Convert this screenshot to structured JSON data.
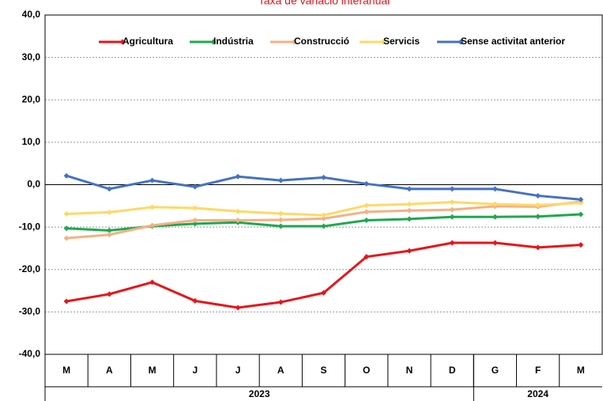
{
  "chart_data": {
    "type": "line",
    "title": "Taxa de variació interanual",
    "categories": [
      "M",
      "A",
      "M",
      "J",
      "J",
      "A",
      "S",
      "O",
      "N",
      "D",
      "G",
      "F",
      "M"
    ],
    "x_groups": [
      {
        "label": "2023",
        "span": 10
      },
      {
        "label": "2024",
        "span": 3
      }
    ],
    "series": [
      {
        "name": "Agricultura",
        "color": "#e8141b",
        "values": [
          -27.5,
          -25.8,
          -23,
          -27.4,
          -29,
          -27.7,
          -25.5,
          -17,
          -15.6,
          -13.7,
          -13.7,
          -14.8,
          -14.2
        ]
      },
      {
        "name": "Indústria",
        "color": "#1fa84f",
        "values": [
          -10.3,
          -10.8,
          -9.8,
          -9.2,
          -8.9,
          -9.8,
          -9.8,
          -8.4,
          -8.1,
          -7.6,
          -7.6,
          -7.5,
          -7.0
        ]
      },
      {
        "name": "Construcció",
        "color": "#f4b183",
        "values": [
          -12.6,
          -11.8,
          -9.6,
          -8.4,
          -8.4,
          -8.3,
          -8.0,
          -6.4,
          -6.1,
          -5.9,
          -5.1,
          -5.2,
          -4.0
        ]
      },
      {
        "name": "Servicis",
        "color": "#ffd966",
        "values": [
          -6.9,
          -6.5,
          -5.3,
          -5.5,
          -6.3,
          -6.8,
          -7.2,
          -4.9,
          -4.6,
          -4.1,
          -4.6,
          -4.8,
          -4.3
        ]
      },
      {
        "name": "Sense activitat anterior",
        "color": "#4472c4",
        "values": [
          2.1,
          -1.0,
          1.0,
          -0.5,
          1.9,
          1.0,
          1.7,
          0.2,
          -1.0,
          -1.0,
          -1.0,
          -2.6,
          -3.5
        ]
      }
    ],
    "ylim": [
      -40,
      40
    ],
    "yticks": [
      {
        "value": -40,
        "label": "-40,0"
      },
      {
        "value": -30,
        "label": "-30,0"
      },
      {
        "value": -20,
        "label": "-20,0"
      },
      {
        "value": -10,
        "label": "-10,0"
      },
      {
        "value": 0,
        "label": "0,0"
      },
      {
        "value": 10,
        "label": "10,0"
      },
      {
        "value": 20,
        "label": "20,0"
      },
      {
        "value": 30,
        "label": "30,0"
      },
      {
        "value": 40,
        "label": "40,0"
      }
    ],
    "grid": true
  }
}
